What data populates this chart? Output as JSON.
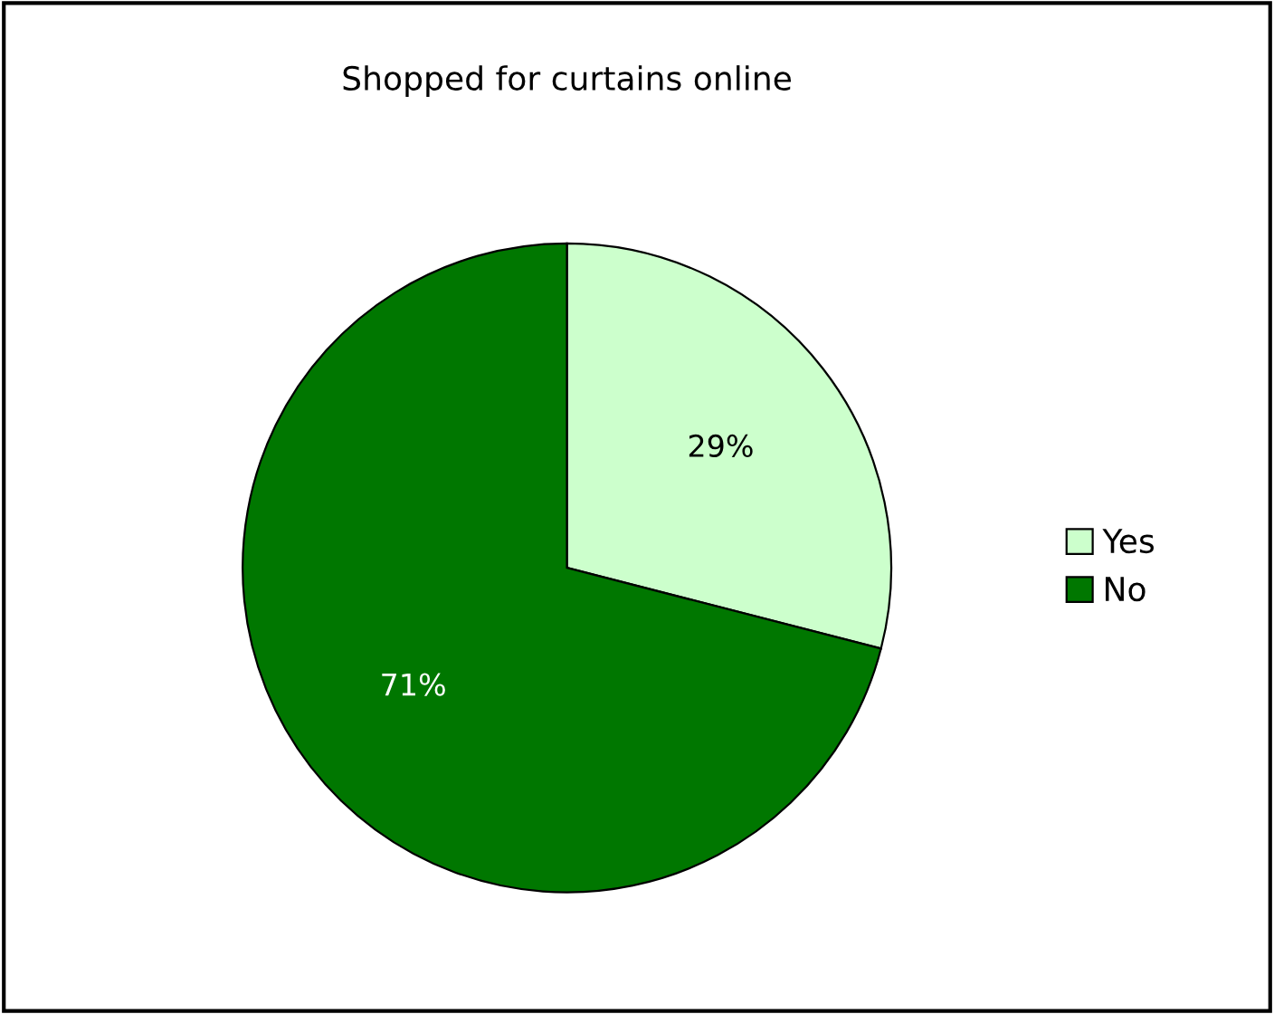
{
  "chart_data": {
    "type": "pie",
    "title": "Shopped for curtains online",
    "categories": [
      "Yes",
      "No"
    ],
    "values": [
      29,
      71
    ],
    "colors": [
      "#ccffcc",
      "#007700"
    ],
    "value_labels": [
      "29%",
      "71%"
    ],
    "legend": "right"
  }
}
